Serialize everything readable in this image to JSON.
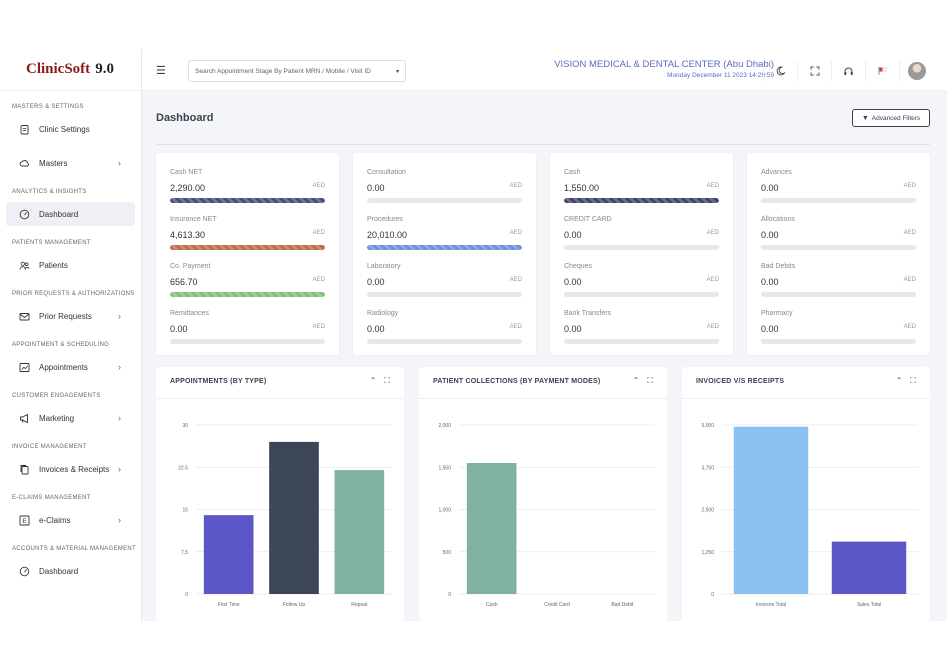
{
  "app": {
    "logo": {
      "clinic": "Clinic",
      "soft": "Soft",
      "version": "9.0"
    }
  },
  "topbar": {
    "search_placeholder": "Search Appointment Stage By Patient MRN / Mobile / Visit ID",
    "center_name": "VISION MEDICAL & DENTAL CENTER (Abu Dhabi)",
    "datetime": "Monday December 11 2023 14:29:59"
  },
  "sidebar": {
    "sections": [
      {
        "title": "MASTERS & SETTINGS",
        "items": [
          {
            "label": "Clinic Settings",
            "icon": "clipboard-icon",
            "chevron": false
          },
          {
            "label": "Masters",
            "icon": "settings-cloud-icon",
            "chevron": true
          }
        ]
      },
      {
        "title": "ANALYTICS & INSIGHTS",
        "items": [
          {
            "label": "Dashboard",
            "icon": "dashboard-gauge-icon",
            "chevron": false,
            "active": true
          }
        ]
      },
      {
        "title": "PATIENTS MANAGEMENT",
        "items": [
          {
            "label": "Patients",
            "icon": "users-icon",
            "chevron": false
          }
        ]
      },
      {
        "title": "PRIOR REQUESTS & AUTHORIZATIONS",
        "items": [
          {
            "label": "Prior Requests",
            "icon": "envelope-icon",
            "chevron": true
          }
        ]
      },
      {
        "title": "APPOINTMENT & SCHEDULING",
        "items": [
          {
            "label": "Appointments",
            "icon": "chart-board-icon",
            "chevron": true
          }
        ]
      },
      {
        "title": "CUSTOMER ENGAGEMENTS",
        "items": [
          {
            "label": "Marketing",
            "icon": "megaphone-icon",
            "chevron": true
          }
        ]
      },
      {
        "title": "INVOICE MANAGEMENT",
        "items": [
          {
            "label": "Invoices & Receipts",
            "icon": "copy-icon",
            "chevron": true
          }
        ]
      },
      {
        "title": "E-CLAIMS MANAGEMENT",
        "items": [
          {
            "label": "e-Claims",
            "icon": "letter-e-icon",
            "chevron": true
          }
        ]
      },
      {
        "title": "ACCOUNTS & MATERIAL MANAGEMENT",
        "items": [
          {
            "label": "Dashboard",
            "icon": "dashboard-gauge-icon",
            "chevron": false
          }
        ]
      }
    ]
  },
  "main": {
    "title": "Dashboard",
    "advanced_filters": "Advanced Filters",
    "stat_cards": [
      {
        "stats": [
          {
            "label": "Cash NET",
            "value": "2,290.00",
            "currency": "AED",
            "fill": 1.0,
            "color": "#4a4e7a"
          },
          {
            "label": "Insurance NET",
            "value": "4,613.30",
            "currency": "AED",
            "fill": 1.0,
            "color": "#c0694a"
          },
          {
            "label": "Co. Payment",
            "value": "656.70",
            "currency": "AED",
            "fill": 1.0,
            "color": "#7ec27a"
          },
          {
            "label": "Remittances",
            "value": "0.00",
            "currency": "AED",
            "fill": 0,
            "color": "#cccccc"
          }
        ]
      },
      {
        "stats": [
          {
            "label": "Consultation",
            "value": "0.00",
            "currency": "AED",
            "fill": 0,
            "color": "#cccccc"
          },
          {
            "label": "Procedures",
            "value": "20,010.00",
            "currency": "AED",
            "fill": 1.0,
            "color": "#6b8fe0"
          },
          {
            "label": "Laboratory",
            "value": "0.00",
            "currency": "AED",
            "fill": 0,
            "color": "#cccccc"
          },
          {
            "label": "Radiology",
            "value": "0.00",
            "currency": "AED",
            "fill": 0,
            "color": "#cccccc"
          }
        ]
      },
      {
        "stats": [
          {
            "label": "Cash",
            "value": "1,550.00",
            "currency": "AED",
            "fill": 1.0,
            "color": "#3f4466"
          },
          {
            "label": "CREDIT CARD",
            "value": "0.00",
            "currency": "AED",
            "fill": 0,
            "color": "#cccccc"
          },
          {
            "label": "Cheques",
            "value": "0.00",
            "currency": "AED",
            "fill": 0,
            "color": "#cccccc"
          },
          {
            "label": "Bank Transfers",
            "value": "0.00",
            "currency": "AED",
            "fill": 0,
            "color": "#cccccc"
          }
        ]
      },
      {
        "stats": [
          {
            "label": "Advances",
            "value": "0.00",
            "currency": "AED",
            "fill": 0,
            "color": "#cccccc"
          },
          {
            "label": "Allocations",
            "value": "0.00",
            "currency": "AED",
            "fill": 0,
            "color": "#cccccc"
          },
          {
            "label": "Bad Debits",
            "value": "0.00",
            "currency": "AED",
            "fill": 0,
            "color": "#cccccc"
          },
          {
            "label": "Pharmacy",
            "value": "0.00",
            "currency": "AED",
            "fill": 0,
            "color": "#cccccc"
          }
        ]
      }
    ]
  },
  "chart_data": [
    {
      "type": "bar",
      "title": "APPOINTMENTS (BY TYPE)",
      "categories": [
        "First Time",
        "Follow Up",
        "Repeat"
      ],
      "values": [
        14,
        27,
        22
      ],
      "colors": [
        "#5b57c7",
        "#3c4657",
        "#7fb3a0"
      ],
      "yticks": [
        "0",
        "7.5",
        "15",
        "22.5",
        "30"
      ],
      "ylim": [
        0,
        30
      ]
    },
    {
      "type": "bar",
      "title": "PATIENT COLLECTIONS (BY PAYMENT MODES)",
      "categories": [
        "Cash",
        "Credit Card",
        "Bad Debit"
      ],
      "values": [
        1550,
        0,
        0
      ],
      "colors": [
        "#7fb3a0",
        "#7fb3a0",
        "#7fb3a0"
      ],
      "yticks": [
        "0",
        "500",
        "1,000",
        "1,500",
        "2,000"
      ],
      "ylim": [
        0,
        2000
      ]
    },
    {
      "type": "bar",
      "title": "INVOICED V/S RECEIPTS",
      "categories": [
        "Invoices Total",
        "Sales Total"
      ],
      "values": [
        4950,
        1550
      ],
      "colors": [
        "#8cc1f2",
        "#5b57c7"
      ],
      "yticks": [
        "0",
        "1,250",
        "2,500",
        "3,750",
        "5,000"
      ],
      "ylim": [
        0,
        5000
      ]
    }
  ]
}
